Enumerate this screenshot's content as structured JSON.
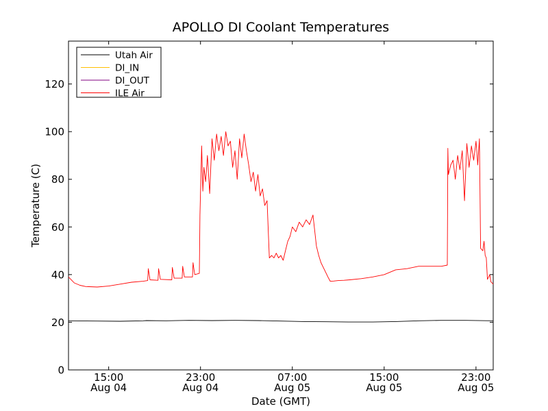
{
  "chart_data": {
    "type": "line",
    "title": "APOLLO DI Coolant Temperatures",
    "xlabel": "Date (GMT)",
    "ylabel": "Temperature (C)",
    "x_unit": "hours since Aug 04 00:00 GMT",
    "xlim": [
      11.5,
      48.5
    ],
    "ylim": [
      0,
      138
    ],
    "yticks": [
      0,
      20,
      40,
      60,
      80,
      100,
      120
    ],
    "xticks": [
      {
        "x": 15,
        "line1": "15:00",
        "line2": "Aug 04"
      },
      {
        "x": 23,
        "line1": "23:00",
        "line2": "Aug 04"
      },
      {
        "x": 31,
        "line1": "07:00",
        "line2": "Aug 05"
      },
      {
        "x": 39,
        "line1": "15:00",
        "line2": "Aug 05"
      },
      {
        "x": 47,
        "line1": "23:00",
        "line2": "Aug 05"
      }
    ],
    "legend_position": "top-left",
    "grid": false,
    "series": [
      {
        "name": "Utah Air",
        "color": "#000000",
        "x": [
          11.5,
          14,
          16,
          18,
          18.3,
          20,
          22,
          24,
          26,
          28,
          30,
          32,
          34,
          36,
          38,
          40,
          42,
          44,
          46,
          48.5
        ],
        "y": [
          20.6,
          20.5,
          20.4,
          20.6,
          20.7,
          20.6,
          20.8,
          20.7,
          20.8,
          20.7,
          20.5,
          20.3,
          20.2,
          20.1,
          20.1,
          20.3,
          20.6,
          20.8,
          20.8,
          20.6
        ]
      },
      {
        "name": "DI_IN",
        "color": "#ffbf00",
        "x": [],
        "y": []
      },
      {
        "name": "DI_OUT",
        "color": "#800080",
        "x": [],
        "y": []
      },
      {
        "name": "ILE Air",
        "color": "#ff0000",
        "x": [
          11.5,
          11.7,
          12,
          12.5,
          13,
          14,
          15,
          16,
          17,
          18,
          18.4,
          18.45,
          18.6,
          19.3,
          19.35,
          19.5,
          20.5,
          20.55,
          20.7,
          21.4,
          21.45,
          21.6,
          22.3,
          22.35,
          22.5,
          22.9,
          22.95,
          23.1,
          23.2,
          23.3,
          23.45,
          23.6,
          23.8,
          24,
          24.2,
          24.4,
          24.6,
          24.8,
          25,
          25.2,
          25.4,
          25.6,
          25.8,
          26,
          26.2,
          26.4,
          26.6,
          26.8,
          27,
          27.2,
          27.4,
          27.6,
          27.8,
          28,
          28.2,
          28.4,
          28.6,
          28.8,
          29,
          29.2,
          29.4,
          29.6,
          29.8,
          30,
          30.2,
          30.4,
          30.6,
          30.8,
          31,
          31.3,
          31.6,
          31.9,
          32.2,
          32.5,
          32.8,
          33.1,
          33.3,
          33.5,
          33.7,
          33.9,
          34.1,
          34.3,
          34.6,
          35,
          35.5,
          36,
          37,
          38,
          39,
          40,
          41,
          42,
          43,
          44,
          44.5,
          44.55,
          44.6,
          44.8,
          45,
          45.2,
          45.4,
          45.6,
          45.8,
          46,
          46.2,
          46.4,
          46.6,
          46.8,
          47,
          47.1,
          47.15,
          47.3,
          47.4,
          47.6,
          47.7,
          47.8,
          47.9,
          48,
          48.2,
          48.3,
          48.5
        ],
        "y": [
          39,
          38,
          36.5,
          35.5,
          35,
          34.8,
          35.2,
          36,
          36.8,
          37.2,
          37.5,
          42.5,
          37.8,
          37.6,
          42.5,
          38,
          37.8,
          43,
          38.5,
          38.5,
          43.5,
          39,
          39,
          45,
          40,
          40.5,
          65,
          94,
          75,
          85,
          79,
          90,
          74,
          97,
          88,
          99,
          92,
          98,
          90,
          100,
          94,
          96,
          85,
          92,
          80,
          97,
          89,
          99,
          92,
          86,
          79,
          83,
          75,
          82,
          73,
          76,
          69,
          71,
          47,
          48,
          47,
          49,
          47,
          48,
          46,
          50,
          54,
          56,
          60,
          58,
          62,
          60,
          63,
          61,
          65,
          52,
          48,
          45,
          43,
          41,
          39,
          37.2,
          37.3,
          37.5,
          37.6,
          37.8,
          38.3,
          39,
          40,
          42,
          42.5,
          43.5,
          43.5,
          43.5,
          44,
          93,
          82,
          86,
          88,
          80,
          90,
          84,
          92,
          71,
          95,
          85,
          94,
          88,
          96,
          90,
          86,
          97,
          51,
          50,
          54,
          48,
          47,
          38,
          40,
          37,
          36
        ]
      }
    ]
  }
}
